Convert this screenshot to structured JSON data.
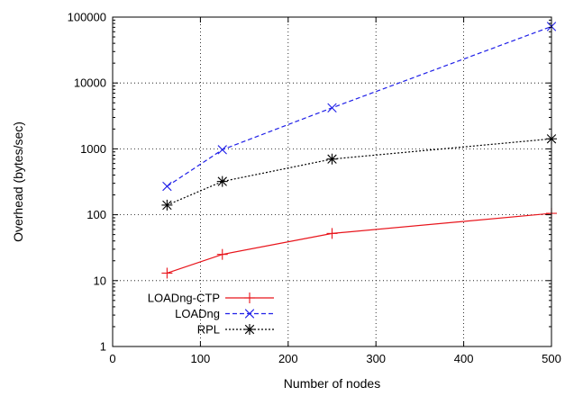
{
  "chart_data": {
    "type": "line",
    "title": "",
    "xlabel": "Number of nodes",
    "ylabel": "Overhead (bytes/sec)",
    "xlim": [
      0,
      500
    ],
    "ylim": [
      1,
      100000
    ],
    "yscale": "log",
    "grid": true,
    "legend_position": "bottom-left",
    "x_ticks": [
      "0",
      "100",
      "200",
      "300",
      "400",
      "500"
    ],
    "y_ticks": [
      "1",
      "10",
      "100",
      "1000",
      "10000",
      "100000"
    ],
    "x_tick_values": [
      0,
      100,
      200,
      300,
      400,
      500
    ],
    "y_tick_values": [
      1,
      10,
      100,
      1000,
      10000,
      100000
    ],
    "series": [
      {
        "name": "LOADng-CTP",
        "color": "#e8141b",
        "line_style": "solid",
        "marker": "plus",
        "x": [
          62,
          125,
          250,
          500
        ],
        "y": [
          13,
          25,
          52,
          105
        ]
      },
      {
        "name": "LOADng",
        "color": "#1f1fe8",
        "line_style": "dashed",
        "marker": "x",
        "x": [
          62,
          125,
          250,
          500
        ],
        "y": [
          270,
          970,
          4200,
          72000
        ]
      },
      {
        "name": "RPL",
        "color": "#000000",
        "line_style": "dotted",
        "marker": "star",
        "x": [
          62,
          125,
          250,
          500
        ],
        "y": [
          140,
          320,
          700,
          1420
        ]
      }
    ]
  }
}
